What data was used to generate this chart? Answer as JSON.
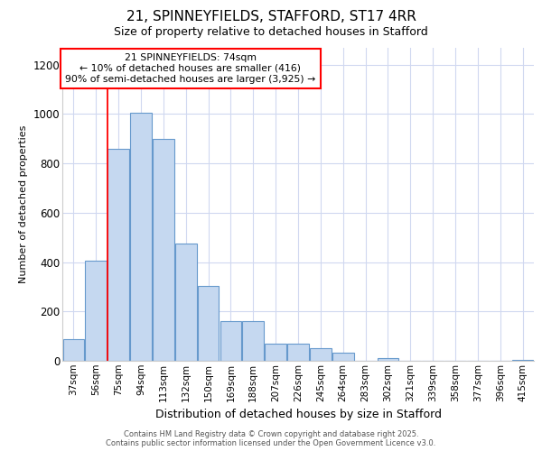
{
  "title1": "21, SPINNEYFIELDS, STAFFORD, ST17 4RR",
  "title2": "Size of property relative to detached houses in Stafford",
  "xlabel": "Distribution of detached houses by size in Stafford",
  "ylabel": "Number of detached properties",
  "categories": [
    "37sqm",
    "56sqm",
    "75sqm",
    "94sqm",
    "113sqm",
    "132sqm",
    "150sqm",
    "169sqm",
    "188sqm",
    "207sqm",
    "226sqm",
    "245sqm",
    "264sqm",
    "283sqm",
    "302sqm",
    "321sqm",
    "339sqm",
    "358sqm",
    "377sqm",
    "396sqm",
    "415sqm"
  ],
  "values": [
    88,
    405,
    860,
    1005,
    900,
    475,
    305,
    160,
    160,
    70,
    70,
    50,
    32,
    0,
    12,
    0,
    0,
    0,
    0,
    0,
    5
  ],
  "bar_color": "#c5d8f0",
  "bar_edge_color": "#6699cc",
  "red_line_x": 1.5,
  "annotation_title": "21 SPINNEYFIELDS: 74sqm",
  "annotation_line1": "← 10% of detached houses are smaller (416)",
  "annotation_line2": "90% of semi-detached houses are larger (3,925) →",
  "ylim": [
    0,
    1270
  ],
  "yticks": [
    0,
    200,
    400,
    600,
    800,
    1000,
    1200
  ],
  "footer1": "Contains HM Land Registry data © Crown copyright and database right 2025.",
  "footer2": "Contains public sector information licensed under the Open Government Licence v3.0.",
  "bg_color": "#ffffff",
  "grid_color": "#d0d8f0"
}
